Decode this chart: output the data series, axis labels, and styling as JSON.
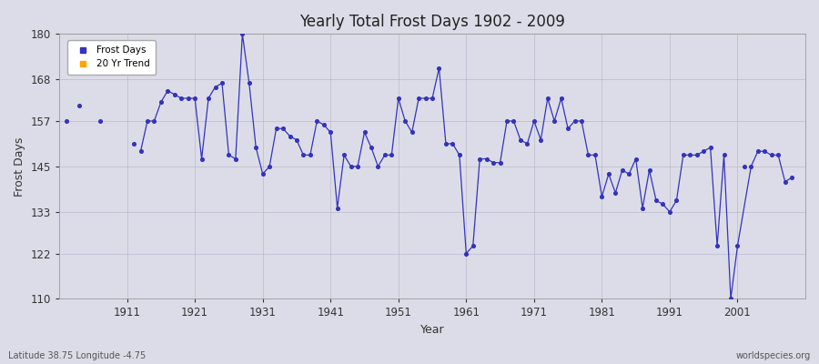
{
  "title": "Yearly Total Frost Days 1902 - 2009",
  "xlabel": "Year",
  "ylabel": "Frost Days",
  "subtitle": "Latitude 38.75 Longitude -4.75",
  "watermark": "worldspecies.org",
  "ylim": [
    110,
    180
  ],
  "yticks": [
    110,
    122,
    133,
    145,
    157,
    168,
    180
  ],
  "xlim": [
    1901,
    2011
  ],
  "xticks": [
    1911,
    1921,
    1931,
    1941,
    1951,
    1961,
    1971,
    1981,
    1991,
    2001
  ],
  "bg_color": "#dcdce8",
  "fig_color": "#dcdce8",
  "line_color": "#3333bb",
  "legend_frost_color": "#3333bb",
  "legend_trend_color": "#ffa500",
  "connected_segments": [
    {
      "years": [
        1913,
        1914,
        1915,
        1916,
        1917,
        1918,
        1919,
        1920,
        1921,
        1922,
        1923,
        1924,
        1925,
        1926,
        1927,
        1928,
        1929,
        1930,
        1931,
        1932,
        1933,
        1934,
        1935,
        1936,
        1937,
        1938,
        1939,
        1940,
        1941,
        1942,
        1943,
        1944,
        1945,
        1946,
        1947,
        1948,
        1949,
        1950,
        1951,
        1952,
        1953,
        1954,
        1955,
        1956,
        1957,
        1958,
        1959,
        1960,
        1961,
        1962,
        1963,
        1964,
        1965,
        1966,
        1967,
        1968,
        1969,
        1970,
        1971,
        1972,
        1973,
        1974,
        1975,
        1976,
        1977,
        1978,
        1979,
        1980,
        1981,
        1982,
        1983,
        1984,
        1985,
        1986,
        1987,
        1988,
        1989,
        1990,
        1991,
        1992,
        1993,
        1994,
        1995,
        1996,
        1997,
        1998,
        1999,
        2000,
        2001,
        2003,
        2004,
        2005,
        2006,
        2007,
        2008,
        2009
      ],
      "values": [
        149,
        157,
        157,
        162,
        165,
        164,
        163,
        163,
        163,
        147,
        163,
        166,
        167,
        148,
        147,
        180,
        167,
        150,
        143,
        145,
        155,
        155,
        153,
        152,
        148,
        148,
        157,
        156,
        154,
        134,
        148,
        145,
        145,
        154,
        150,
        145,
        148,
        148,
        163,
        157,
        154,
        163,
        163,
        163,
        171,
        151,
        151,
        148,
        122,
        124,
        147,
        147,
        146,
        146,
        157,
        157,
        152,
        151,
        157,
        152,
        163,
        157,
        163,
        155,
        157,
        157,
        148,
        148,
        137,
        143,
        138,
        144,
        143,
        147,
        134,
        144,
        136,
        135,
        133,
        136,
        148,
        148,
        148,
        149,
        150,
        124,
        148,
        110,
        124,
        145,
        149,
        149,
        148,
        148,
        141,
        142
      ]
    }
  ],
  "isolated_points": [
    {
      "year": 1902,
      "value": 157
    },
    {
      "year": 1904,
      "value": 161
    },
    {
      "year": 1907,
      "value": 157
    },
    {
      "year": 1912,
      "value": 151
    },
    {
      "year": 2002,
      "value": 145
    }
  ]
}
